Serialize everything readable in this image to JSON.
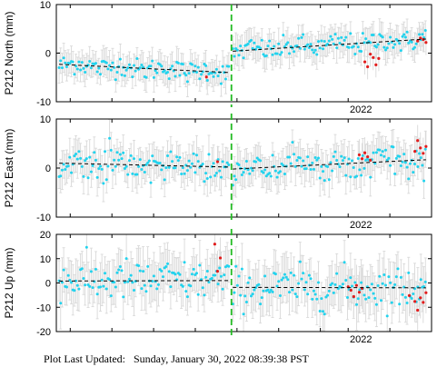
{
  "footer": {
    "prefix": "Plot Last Updated:",
    "timestamp": "Sunday, January 30, 2022 08:39:38 PST"
  },
  "colors": {
    "frame": "#000000",
    "errorbar": "#d9d9d9",
    "points": "#22d3ee",
    "outliers": "#e11d1d",
    "trend": "#000000",
    "event_line": "#22bb22"
  },
  "chart_data": [
    {
      "type": "scatter",
      "station": "P212",
      "component": "North",
      "ylabel": "P212 North (mm)",
      "ylim": [
        -10,
        10
      ],
      "yticks": [
        -10,
        0,
        10
      ],
      "x_tick_labels": [
        "2022"
      ],
      "x_range": [
        2020.95,
        2022.3
      ],
      "event_x": 2021.58,
      "trend_segments": [
        {
          "from": [
            2020.96,
            -2.3
          ],
          "to": [
            2021.575,
            -4.0
          ]
        },
        {
          "from": [
            2021.585,
            0.4
          ],
          "to": [
            2022.28,
            2.9
          ]
        }
      ],
      "noise_sd": 1.1,
      "errorbar_half_width": 2.6,
      "outliers": [
        {
          "x": 2021.49,
          "y": -4.9
        },
        {
          "x": 2022.06,
          "y": -1.8
        },
        {
          "x": 2022.07,
          "y": -2.8
        },
        {
          "x": 2022.08,
          "y": -0.2
        },
        {
          "x": 2022.09,
          "y": -0.9
        },
        {
          "x": 2022.1,
          "y": -2.4
        },
        {
          "x": 2022.11,
          "y": -1.1
        },
        {
          "x": 2022.25,
          "y": 2.5
        },
        {
          "x": 2022.26,
          "y": 3.1
        },
        {
          "x": 2022.27,
          "y": 2.8
        },
        {
          "x": 2022.28,
          "y": 2.2
        }
      ]
    },
    {
      "type": "scatter",
      "station": "P212",
      "component": "East",
      "ylabel": "P212 East (mm)",
      "ylim": [
        -10,
        10
      ],
      "yticks": [
        -10,
        0,
        10
      ],
      "x_tick_labels": [
        "2022"
      ],
      "x_range": [
        2020.95,
        2022.3
      ],
      "event_x": 2021.58,
      "trend_segments": [
        {
          "from": [
            2020.96,
            1.0
          ],
          "to": [
            2021.575,
            0.2
          ]
        },
        {
          "from": [
            2021.585,
            -0.2
          ],
          "to": [
            2022.28,
            1.7
          ]
        }
      ],
      "noise_sd": 1.4,
      "errorbar_half_width": 3.2,
      "outliers": [
        {
          "x": 2021.53,
          "y": 1.3
        },
        {
          "x": 2022.04,
          "y": 2.7
        },
        {
          "x": 2022.05,
          "y": 1.9
        },
        {
          "x": 2022.06,
          "y": 3.1
        },
        {
          "x": 2022.07,
          "y": 2.3
        },
        {
          "x": 2022.08,
          "y": 1.6
        },
        {
          "x": 2022.24,
          "y": 3.4
        },
        {
          "x": 2022.25,
          "y": 5.6
        },
        {
          "x": 2022.26,
          "y": 4.1
        },
        {
          "x": 2022.27,
          "y": 3.0
        },
        {
          "x": 2022.28,
          "y": 4.4
        }
      ]
    },
    {
      "type": "scatter",
      "station": "P212",
      "component": "Up",
      "ylabel": "P212 Up (mm)",
      "ylim": [
        -20,
        20
      ],
      "yticks": [
        -20,
        -10,
        0,
        10,
        20
      ],
      "x_tick_labels": [
        "2022"
      ],
      "x_range": [
        2020.95,
        2022.3
      ],
      "event_x": 2021.58,
      "trend_segments": [
        {
          "from": [
            2020.96,
            0.8
          ],
          "to": [
            2021.575,
            1.0
          ]
        },
        {
          "from": [
            2021.585,
            -1.8
          ],
          "to": [
            2022.28,
            -2.0
          ]
        }
      ],
      "noise_sd": 4.2,
      "errorbar_half_width": 8.5,
      "outliers": [
        {
          "x": 2021.52,
          "y": 16.0
        },
        {
          "x": 2021.53,
          "y": 4.8
        },
        {
          "x": 2021.54,
          "y": 10.3
        },
        {
          "x": 2022.0,
          "y": -1.6
        },
        {
          "x": 2022.01,
          "y": -3.0
        },
        {
          "x": 2022.02,
          "y": -5.6
        },
        {
          "x": 2022.03,
          "y": -1.0
        },
        {
          "x": 2022.04,
          "y": -3.8
        },
        {
          "x": 2022.05,
          "y": -2.2
        },
        {
          "x": 2022.22,
          "y": -5.2
        },
        {
          "x": 2022.24,
          "y": -7.6
        },
        {
          "x": 2022.25,
          "y": -11.2
        },
        {
          "x": 2022.26,
          "y": -6.1
        },
        {
          "x": 2022.27,
          "y": -8.0
        },
        {
          "x": 2022.28,
          "y": -4.0
        }
      ]
    }
  ]
}
